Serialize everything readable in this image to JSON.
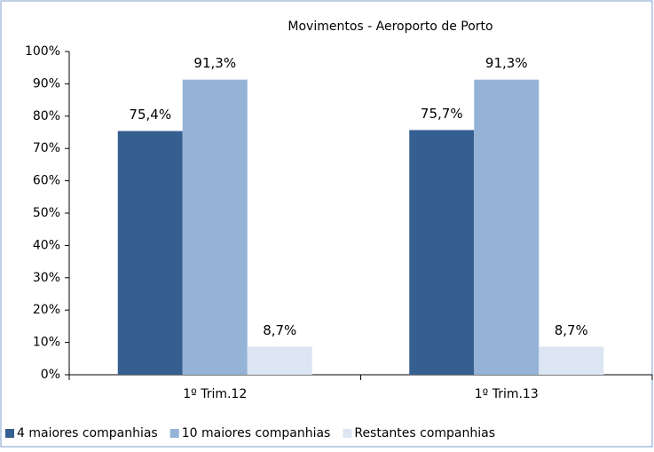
{
  "chart_data": {
    "type": "bar",
    "title": "Movimentos - Aeroporto de Porto",
    "categories": [
      "1º Trim.12",
      "1º Trim.13"
    ],
    "series": [
      {
        "name": "4 maiores companhias",
        "color": "#365f91",
        "values": [
          75.4,
          75.7
        ],
        "value_labels": [
          "75,4%",
          "75,7%"
        ]
      },
      {
        "name": "10 maiores companhias",
        "color": "#95b3d7",
        "values": [
          91.3,
          91.3
        ],
        "value_labels": [
          "91,3%",
          "91,3%"
        ]
      },
      {
        "name": "Restantes companhias",
        "color": "#dce6f2",
        "values": [
          8.7,
          8.7
        ],
        "value_labels": [
          "8,7%",
          "8,7%"
        ]
      }
    ],
    "ylim": [
      0,
      100
    ],
    "yticks": [
      {
        "value": 0,
        "label": "0%"
      },
      {
        "value": 10,
        "label": "10%"
      },
      {
        "value": 20,
        "label": "20%"
      },
      {
        "value": 30,
        "label": "30%"
      },
      {
        "value": 40,
        "label": "40%"
      },
      {
        "value": 50,
        "label": "50%"
      },
      {
        "value": 60,
        "label": "60%"
      },
      {
        "value": 70,
        "label": "70%"
      },
      {
        "value": 80,
        "label": "80%"
      },
      {
        "value": 90,
        "label": "90%"
      },
      {
        "value": 100,
        "label": "100%"
      }
    ],
    "legend": "bottom"
  }
}
